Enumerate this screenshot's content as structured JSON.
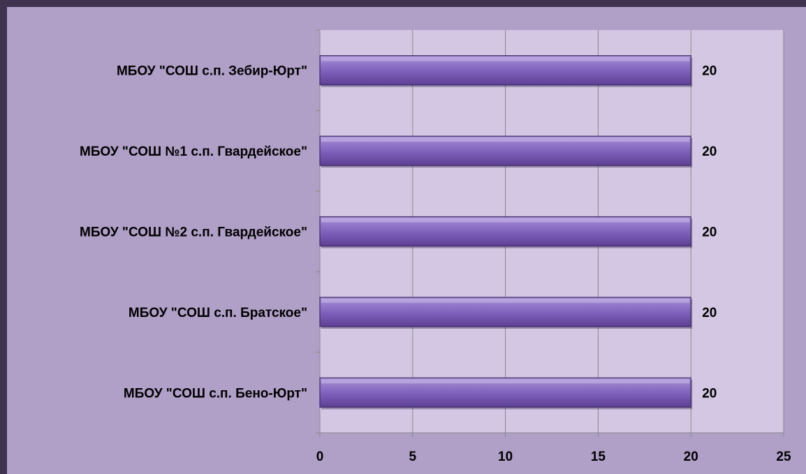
{
  "colors": {
    "frame": "#3f3350",
    "background": "#b09fc7",
    "plot_area": "#d3c7e3",
    "gridline": "#8a8a8a",
    "bar_light": "#a88fd8",
    "bar_dark": "#5d3f93",
    "bar_edge": "#3f2c66"
  },
  "chart_data": {
    "type": "bar",
    "orientation": "horizontal",
    "categories": [
      "МБОУ \"СОШ с.п. Бено-Юрт\"",
      "МБОУ \"СОШ с.п. Братское\"",
      "МБОУ \"СОШ №2 с.п. Гвардейское\"",
      "МБОУ \"СОШ №1 с.п. Гвардейское\"",
      "МБОУ \"СОШ с.п. Зебир-Юрт\""
    ],
    "values": [
      20,
      20,
      20,
      20,
      20
    ],
    "data_labels": [
      "20",
      "20",
      "20",
      "20",
      "20"
    ],
    "xlim": [
      0,
      25
    ],
    "x_ticks": [
      "0",
      "5",
      "10",
      "15",
      "20",
      "25"
    ],
    "grid": "vertical",
    "legend": "none",
    "title": "",
    "xlabel": "",
    "ylabel": ""
  }
}
